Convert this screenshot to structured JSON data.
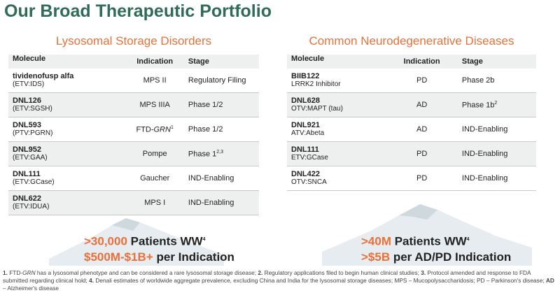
{
  "title": "Our Broad Therapeutic Portfolio",
  "lsd": {
    "heading": "Lysosomal Storage Disorders",
    "cols": [
      "Molecule",
      "Indication",
      "Stage"
    ],
    "rows": [
      {
        "name": "tividenofusp alfa",
        "sub": "(ETV:IDS)",
        "ind": "MPS II",
        "stage": "Regulatory Filing"
      },
      {
        "name": "DNL126",
        "sub": "(ETV:SGSH)",
        "ind": "MPS IIIA",
        "stage": "Phase 1/2"
      },
      {
        "name": "DNL593",
        "sub": "(PTV:PGRN)",
        "ind_pre": "FTD-",
        "ind_em": "GRN",
        "ind_sup": "1",
        "stage": "Phase 1/2"
      },
      {
        "name": "DNL952",
        "sub": "(ETV:GAA)",
        "ind": "Pompe",
        "stage": "Phase 1",
        "stage_sup": "2,3"
      },
      {
        "name": "DNL111",
        "sub": "(ETV:GCase)",
        "ind": "Gaucher",
        "stage": "IND-Enabling"
      },
      {
        "name": "DNL622",
        "sub": "(ETV:IDUA)",
        "ind": "MPS I",
        "stage": "IND-Enabling"
      }
    ],
    "stat1_hl": ">30,000",
    "stat1_rest": " Patients WW",
    "stat1_sup": "4",
    "stat2_hl": "$500M-$1B+",
    "stat2_rest": " per Indication"
  },
  "neuro": {
    "heading": "Common Neurodegenerative Diseases",
    "cols": [
      "Molecule",
      "Indication",
      "Stage"
    ],
    "rows": [
      {
        "name": "BIIB122",
        "sub": "LRRK2 Inhibitor",
        "ind": "PD",
        "stage": "Phase 2b"
      },
      {
        "name": "DNL628",
        "sub": "OTV:MAPT (tau)",
        "ind": "AD",
        "stage": "Phase 1b",
        "stage_sup": "2"
      },
      {
        "name": "DNL921",
        "sub": "ATV:Abeta",
        "ind": "AD",
        "stage": "IND-Enabling"
      },
      {
        "name": "DNL111",
        "sub": "ETV:GCase",
        "ind": "PD",
        "stage": "IND-Enabling"
      },
      {
        "name": "DNL422",
        "sub": "OTV:SNCA",
        "ind": "PD",
        "stage": "IND-Enabling"
      }
    ],
    "stat1_hl": ">40M",
    "stat1_rest": " Patients WW",
    "stat1_sup": "4",
    "stat2_hl": ">$5B",
    "stat2_rest": " per AD/PD Indication"
  },
  "footnote": {
    "n1_num": "1.",
    "n1_a": " FTD-",
    "n1_em": "GRN",
    "n1_b": " has a lysosomal phenotype and can be considered a rare lysosomal storage disease; ",
    "n2_num": "2.",
    "n2": " Regulatory applications filed to begin human clinical studies; ",
    "n3_num": "3.",
    "n3": " Protocol amended and response to FDA submitted regarding clinical hold; ",
    "n4_num": "4.",
    "n4": " Denali estimates of worldwide aggregate prevalence, excluding China and India for the lysosomal storage diseases; MPS – Mucopolysaccharidosis; PD – Parkinson's disease; ",
    "ad_abbr": "AD",
    "ad_rest": " – Alzheimer's disease"
  },
  "colors": {
    "brand_green": "#2f6b57",
    "accent_orange": "#e8703a",
    "row_shade": "#eef0f0"
  }
}
